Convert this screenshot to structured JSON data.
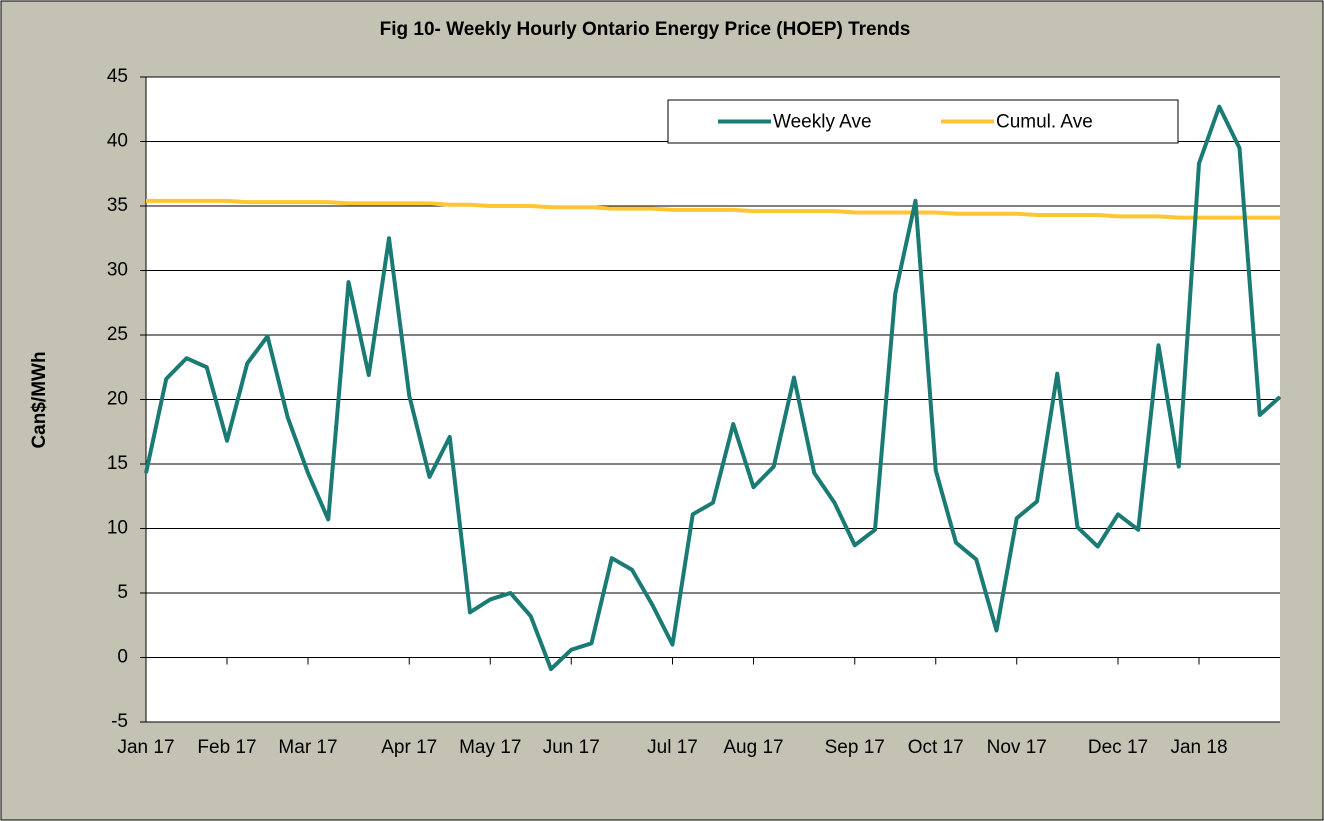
{
  "chart_data": {
    "type": "line",
    "title": "Fig 10- Weekly Hourly Ontario Energy Price (HOEP) Trends",
    "y_label": "Can$/MWh",
    "categories": [
      "Jan 17",
      null,
      null,
      null,
      "Feb 17",
      null,
      null,
      null,
      "Mar 17",
      null,
      null,
      null,
      null,
      "Apr 17",
      null,
      null,
      null,
      "May 17",
      null,
      null,
      null,
      "Jun 17",
      null,
      null,
      null,
      null,
      "Jul 17",
      null,
      null,
      null,
      "Aug 17",
      null,
      null,
      null,
      null,
      "Sep 17",
      null,
      null,
      null,
      "Oct 17",
      null,
      null,
      null,
      "Nov 17",
      null,
      null,
      null,
      null,
      "Dec 17",
      null,
      null,
      null,
      "Jan 18",
      null,
      null,
      null,
      null
    ],
    "series": [
      {
        "name": "Weekly Ave",
        "color": "#1a7a74",
        "values": [
          14.3,
          21.6,
          23.2,
          22.5,
          16.8,
          22.8,
          24.9,
          18.6,
          14.3,
          10.7,
          29.1,
          21.9,
          32.5,
          20.3,
          14.0,
          17.1,
          3.5,
          4.5,
          5.0,
          3.2,
          -0.9,
          0.6,
          1.1,
          7.7,
          6.8,
          4.1,
          1.0,
          11.1,
          12.0,
          18.1,
          13.2,
          14.8,
          21.7,
          14.3,
          12.0,
          8.7,
          9.9,
          28.2,
          35.4,
          14.5,
          8.9,
          7.6,
          2.1,
          10.8,
          12.1,
          22.0,
          10.1,
          8.6,
          11.1,
          9.9,
          24.2,
          14.8,
          38.3,
          42.7,
          39.5,
          18.8,
          20.2
        ]
      },
      {
        "name": "Cumul. Ave",
        "color": "#ffc533",
        "values": [
          35.4,
          35.4,
          35.4,
          35.4,
          35.4,
          35.3,
          35.3,
          35.3,
          35.3,
          35.3,
          35.2,
          35.2,
          35.2,
          35.2,
          35.2,
          35.1,
          35.1,
          35.0,
          35.0,
          35.0,
          34.9,
          34.9,
          34.9,
          34.8,
          34.8,
          34.8,
          34.7,
          34.7,
          34.7,
          34.7,
          34.6,
          34.6,
          34.6,
          34.6,
          34.6,
          34.5,
          34.5,
          34.5,
          34.5,
          34.5,
          34.4,
          34.4,
          34.4,
          34.4,
          34.3,
          34.3,
          34.3,
          34.3,
          34.2,
          34.2,
          34.2,
          34.1,
          34.1,
          34.1,
          34.1,
          34.1,
          34.1
        ]
      }
    ],
    "ylim": [
      -5,
      45
    ],
    "yticks": [
      -5,
      0,
      5,
      10,
      15,
      20,
      25,
      30,
      35,
      40,
      45
    ],
    "grid": true,
    "legend": "upper right"
  }
}
